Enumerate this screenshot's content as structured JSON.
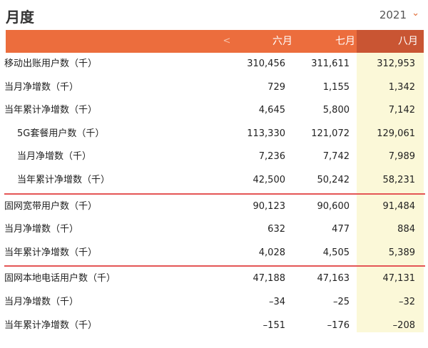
{
  "header": {
    "title": "月度",
    "year": "2021"
  },
  "columns": {
    "prev": "<",
    "months": [
      "六月",
      "七月",
      "八月"
    ]
  },
  "sections": [
    {
      "rows": [
        {
          "label": "移动出账用户数（千）",
          "indent": false,
          "values": [
            "310,456",
            "311,611",
            "312,953"
          ]
        },
        {
          "label": "当月净增数（千）",
          "indent": false,
          "values": [
            "729",
            "1,155",
            "1,342"
          ]
        },
        {
          "label": "当年累计净增数（千）",
          "indent": false,
          "values": [
            "4,645",
            "5,800",
            "7,142"
          ]
        },
        {
          "label": "5G套餐用户数（千）",
          "indent": true,
          "values": [
            "113,330",
            "121,072",
            "129,061"
          ]
        },
        {
          "label": "当月净增数（千）",
          "indent": true,
          "values": [
            "7,236",
            "7,742",
            "7,989"
          ]
        },
        {
          "label": "当年累计净增数（千）",
          "indent": true,
          "values": [
            "42,500",
            "50,242",
            "58,231"
          ]
        }
      ]
    },
    {
      "rows": [
        {
          "label": "固网宽带用户数（千）",
          "indent": false,
          "values": [
            "90,123",
            "90,600",
            "91,484"
          ]
        },
        {
          "label": "当月净增数（千）",
          "indent": false,
          "values": [
            "632",
            "477",
            "884"
          ]
        },
        {
          "label": "当年累计净增数（千）",
          "indent": false,
          "values": [
            "4,028",
            "4,505",
            "5,389"
          ]
        }
      ]
    },
    {
      "rows": [
        {
          "label": "固网本地电话用户数（千）",
          "indent": false,
          "values": [
            "47,188",
            "47,163",
            "47,131"
          ]
        },
        {
          "label": "当月净增数（千）",
          "indent": false,
          "values": [
            "–34",
            "–25",
            "–32"
          ]
        },
        {
          "label": "当年累计净增数（千）",
          "indent": false,
          "values": [
            "–151",
            "–176",
            "–208"
          ]
        }
      ]
    }
  ],
  "colors": {
    "header": "#ec6d3d",
    "selected_header": "#c95533",
    "selected_column": "#fbf8d8",
    "separator": "#e45555"
  }
}
